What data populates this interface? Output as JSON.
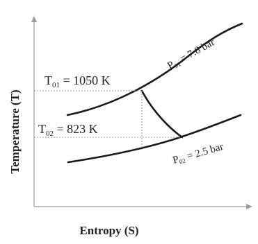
{
  "labels": {
    "x_axis": "Entropy (S)",
    "y_axis": "Temperature (T)",
    "t01_main": "T",
    "t01_sub": "01",
    "t01_value": " = 1050 K",
    "t02_main": "T",
    "t02_sub": "02",
    "t02_value": " = 823 K",
    "p01_main": "P",
    "p01_sub": "01",
    "p01_value": " = 7.8 bar",
    "p02_main": "P",
    "p02_sub": "02",
    "p02_value": " = 2.5 bar"
  }
}
